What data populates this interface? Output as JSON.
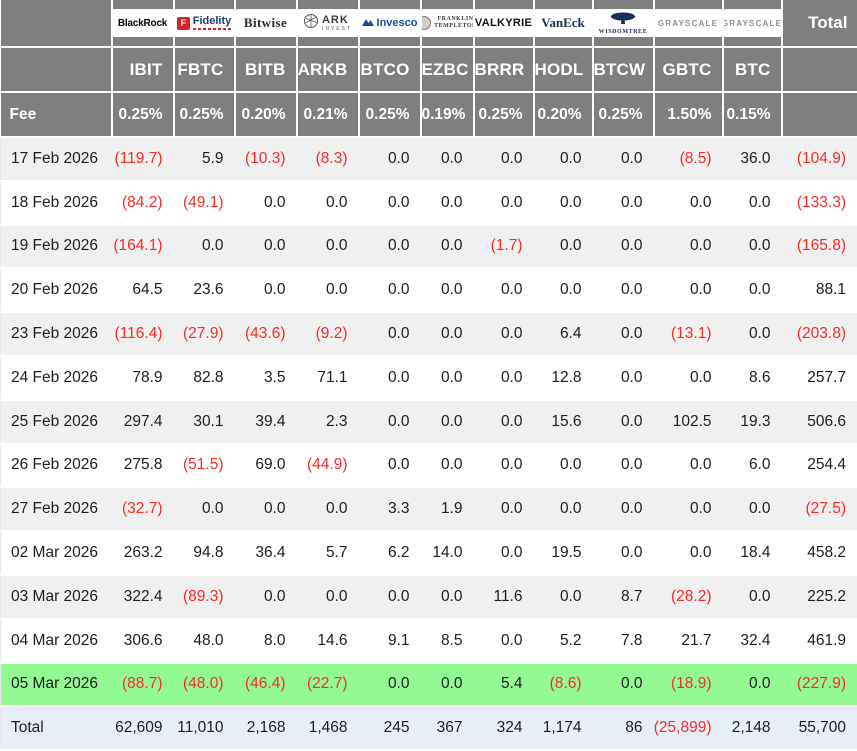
{
  "colors": {
    "header_gray": "#7f7f7f",
    "stripe_gray": "#f0f0f0",
    "highlight_green": "#93fa93",
    "total_row_blue": "#e8eef7",
    "negative_red": "#fa2a25",
    "text_dark": "#1d1d1f",
    "invesco_blue": "#1450a0",
    "fidelity_red": "#d5232a",
    "navy": "#1a2f5a"
  },
  "table": {
    "corner_label": "",
    "total_label": "Total",
    "fee_label": "Fee",
    "providers": [
      {
        "name": "BlackRock",
        "ticker": "IBIT",
        "fee": "0.25%",
        "logo": {
          "kind": "blackrock",
          "text": "BlackRock"
        }
      },
      {
        "name": "Fidelity",
        "ticker": "FBTC",
        "fee": "0.25%",
        "logo": {
          "kind": "fidelity",
          "badge": "F",
          "text": "Fidelity"
        }
      },
      {
        "name": "Bitwise",
        "ticker": "BITB",
        "fee": "0.20%",
        "logo": {
          "kind": "bitwise",
          "text": "Bitwise"
        }
      },
      {
        "name": "ARK Invest",
        "ticker": "ARKB",
        "fee": "0.21%",
        "logo": {
          "kind": "ark",
          "text": "ARK",
          "subtext": "INVEST"
        }
      },
      {
        "name": "Invesco",
        "ticker": "BTCO",
        "fee": "0.25%",
        "logo": {
          "kind": "invesco",
          "text": "Invesco"
        }
      },
      {
        "name": "Franklin Templeton",
        "ticker": "EZBC",
        "fee": "0.19%",
        "logo": {
          "kind": "franklin",
          "text": "FRANKLIN",
          "subtext": "TEMPLETON"
        }
      },
      {
        "name": "Valkyrie",
        "ticker": "BRRR",
        "fee": "0.25%",
        "logo": {
          "kind": "valkyrie",
          "text": "VALKYRIE"
        }
      },
      {
        "name": "VanEck",
        "ticker": "HODL",
        "fee": "0.20%",
        "logo": {
          "kind": "vaneck",
          "text": "VanEck"
        }
      },
      {
        "name": "WisdomTree",
        "ticker": "BTCW",
        "fee": "0.25%",
        "logo": {
          "kind": "wisdomtree",
          "text": "WISDOMTREE"
        }
      },
      {
        "name": "Grayscale",
        "ticker": "GBTC",
        "fee": "1.50%",
        "logo": {
          "kind": "grayscale",
          "text": "GRAYSCALE"
        }
      },
      {
        "name": "Grayscale",
        "ticker": "BTC",
        "fee": "0.15%",
        "logo": {
          "kind": "grayscale",
          "text": "GRAYSCALE"
        }
      }
    ],
    "rows": [
      {
        "date": "17 Feb 2026",
        "values": [
          "(119.7)",
          "5.9",
          "(10.3)",
          "(8.3)",
          "0.0",
          "0.0",
          "0.0",
          "0.0",
          "0.0",
          "(8.5)",
          "36.0"
        ],
        "total": "(104.9)",
        "highlight": false
      },
      {
        "date": "18 Feb 2026",
        "values": [
          "(84.2)",
          "(49.1)",
          "0.0",
          "0.0",
          "0.0",
          "0.0",
          "0.0",
          "0.0",
          "0.0",
          "0.0",
          "0.0"
        ],
        "total": "(133.3)",
        "highlight": false
      },
      {
        "date": "19 Feb 2026",
        "values": [
          "(164.1)",
          "0.0",
          "0.0",
          "0.0",
          "0.0",
          "0.0",
          "(1.7)",
          "0.0",
          "0.0",
          "0.0",
          "0.0"
        ],
        "total": "(165.8)",
        "highlight": false
      },
      {
        "date": "20 Feb 2026",
        "values": [
          "64.5",
          "23.6",
          "0.0",
          "0.0",
          "0.0",
          "0.0",
          "0.0",
          "0.0",
          "0.0",
          "0.0",
          "0.0"
        ],
        "total": "88.1",
        "highlight": false
      },
      {
        "date": "23 Feb 2026",
        "values": [
          "(116.4)",
          "(27.9)",
          "(43.6)",
          "(9.2)",
          "0.0",
          "0.0",
          "0.0",
          "6.4",
          "0.0",
          "(13.1)",
          "0.0"
        ],
        "total": "(203.8)",
        "highlight": false
      },
      {
        "date": "24 Feb 2026",
        "values": [
          "78.9",
          "82.8",
          "3.5",
          "71.1",
          "0.0",
          "0.0",
          "0.0",
          "12.8",
          "0.0",
          "0.0",
          "8.6"
        ],
        "total": "257.7",
        "highlight": false
      },
      {
        "date": "25 Feb 2026",
        "values": [
          "297.4",
          "30.1",
          "39.4",
          "2.3",
          "0.0",
          "0.0",
          "0.0",
          "15.6",
          "0.0",
          "102.5",
          "19.3"
        ],
        "total": "506.6",
        "highlight": false
      },
      {
        "date": "26 Feb 2026",
        "values": [
          "275.8",
          "(51.5)",
          "69.0",
          "(44.9)",
          "0.0",
          "0.0",
          "0.0",
          "0.0",
          "0.0",
          "0.0",
          "6.0"
        ],
        "total": "254.4",
        "highlight": false
      },
      {
        "date": "27 Feb 2026",
        "values": [
          "(32.7)",
          "0.0",
          "0.0",
          "0.0",
          "3.3",
          "1.9",
          "0.0",
          "0.0",
          "0.0",
          "0.0",
          "0.0"
        ],
        "total": "(27.5)",
        "highlight": false
      },
      {
        "date": "02 Mar 2026",
        "values": [
          "263.2",
          "94.8",
          "36.4",
          "5.7",
          "6.2",
          "14.0",
          "0.0",
          "19.5",
          "0.0",
          "0.0",
          "18.4"
        ],
        "total": "458.2",
        "highlight": false
      },
      {
        "date": "03 Mar 2026",
        "values": [
          "322.4",
          "(89.3)",
          "0.0",
          "0.0",
          "0.0",
          "0.0",
          "11.6",
          "0.0",
          "8.7",
          "(28.2)",
          "0.0"
        ],
        "total": "225.2",
        "highlight": false
      },
      {
        "date": "04 Mar 2026",
        "values": [
          "306.6",
          "48.0",
          "8.0",
          "14.6",
          "9.1",
          "8.5",
          "0.0",
          "5.2",
          "7.8",
          "21.7",
          "32.4"
        ],
        "total": "461.9",
        "highlight": false
      },
      {
        "date": "05 Mar 2026",
        "values": [
          "(88.7)",
          "(48.0)",
          "(46.4)",
          "(22.7)",
          "0.0",
          "0.0",
          "5.4",
          "(8.6)",
          "0.0",
          "(18.9)",
          "0.0"
        ],
        "total": "(227.9)",
        "highlight": true
      }
    ],
    "total_row": {
      "label": "Total",
      "values": [
        "62,609",
        "11,010",
        "2,168",
        "1,468",
        "245",
        "367",
        "324",
        "1,174",
        "86",
        "(25,899)",
        "2,148"
      ],
      "total": "55,700"
    }
  },
  "chart_data": {
    "type": "table",
    "columns": [
      "IBIT",
      "FBTC",
      "BITB",
      "ARKB",
      "BTCO",
      "EZBC",
      "BRRR",
      "HODL",
      "BTCW",
      "GBTC",
      "BTC",
      "Total"
    ],
    "providers": [
      "BlackRock",
      "Fidelity",
      "Bitwise",
      "ARK Invest",
      "Invesco",
      "Franklin Templeton",
      "Valkyrie",
      "VanEck",
      "WisdomTree",
      "Grayscale",
      "Grayscale"
    ],
    "fees_percent": [
      0.25,
      0.25,
      0.2,
      0.21,
      0.25,
      0.19,
      0.25,
      0.2,
      0.25,
      1.5,
      0.15
    ],
    "rows": [
      {
        "date": "17 Feb 2026",
        "values": [
          -119.7,
          5.9,
          -10.3,
          -8.3,
          0.0,
          0.0,
          0.0,
          0.0,
          0.0,
          -8.5,
          36.0
        ],
        "total": -104.9
      },
      {
        "date": "18 Feb 2026",
        "values": [
          -84.2,
          -49.1,
          0.0,
          0.0,
          0.0,
          0.0,
          0.0,
          0.0,
          0.0,
          0.0,
          0.0
        ],
        "total": -133.3
      },
      {
        "date": "19 Feb 2026",
        "values": [
          -164.1,
          0.0,
          0.0,
          0.0,
          0.0,
          0.0,
          -1.7,
          0.0,
          0.0,
          0.0,
          0.0
        ],
        "total": -165.8
      },
      {
        "date": "20 Feb 2026",
        "values": [
          64.5,
          23.6,
          0.0,
          0.0,
          0.0,
          0.0,
          0.0,
          0.0,
          0.0,
          0.0,
          0.0
        ],
        "total": 88.1
      },
      {
        "date": "23 Feb 2026",
        "values": [
          -116.4,
          -27.9,
          -43.6,
          -9.2,
          0.0,
          0.0,
          0.0,
          6.4,
          0.0,
          -13.1,
          0.0
        ],
        "total": -203.8
      },
      {
        "date": "24 Feb 2026",
        "values": [
          78.9,
          82.8,
          3.5,
          71.1,
          0.0,
          0.0,
          0.0,
          12.8,
          0.0,
          0.0,
          8.6
        ],
        "total": 257.7
      },
      {
        "date": "25 Feb 2026",
        "values": [
          297.4,
          30.1,
          39.4,
          2.3,
          0.0,
          0.0,
          0.0,
          15.6,
          0.0,
          102.5,
          19.3
        ],
        "total": 506.6
      },
      {
        "date": "26 Feb 2026",
        "values": [
          275.8,
          -51.5,
          69.0,
          -44.9,
          0.0,
          0.0,
          0.0,
          0.0,
          0.0,
          0.0,
          6.0
        ],
        "total": 254.4
      },
      {
        "date": "27 Feb 2026",
        "values": [
          -32.7,
          0.0,
          0.0,
          0.0,
          3.3,
          1.9,
          0.0,
          0.0,
          0.0,
          0.0,
          0.0
        ],
        "total": -27.5
      },
      {
        "date": "02 Mar 2026",
        "values": [
          263.2,
          94.8,
          36.4,
          5.7,
          6.2,
          14.0,
          0.0,
          19.5,
          0.0,
          0.0,
          18.4
        ],
        "total": 458.2
      },
      {
        "date": "03 Mar 2026",
        "values": [
          322.4,
          -89.3,
          0.0,
          0.0,
          0.0,
          0.0,
          11.6,
          0.0,
          8.7,
          -28.2,
          0.0
        ],
        "total": 225.2
      },
      {
        "date": "04 Mar 2026",
        "values": [
          306.6,
          48.0,
          8.0,
          14.6,
          9.1,
          8.5,
          0.0,
          5.2,
          7.8,
          21.7,
          32.4
        ],
        "total": 461.9
      },
      {
        "date": "05 Mar 2026",
        "values": [
          -88.7,
          -48.0,
          -46.4,
          -22.7,
          0.0,
          0.0,
          5.4,
          -8.6,
          0.0,
          -18.9,
          0.0
        ],
        "total": -227.9
      }
    ],
    "totals": {
      "values": [
        62609,
        11010,
        2168,
        1468,
        245,
        367,
        324,
        1174,
        86,
        -25899,
        2148
      ],
      "total": 55700
    },
    "notes": "negative values shown in red parentheses; 05 Mar 2026 row highlighted green; Total row highlighted light blue"
  }
}
